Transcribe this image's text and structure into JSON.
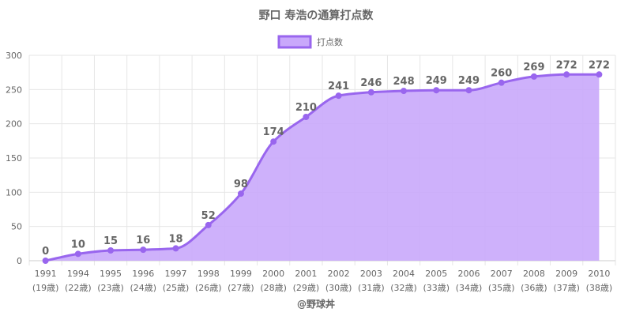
{
  "chart_data": {
    "type": "area",
    "title": "野口 寿浩の通算打点数",
    "legend": [
      {
        "label": "打点数"
      }
    ],
    "legend_position": "top-center",
    "x": [
      "1991",
      "1994",
      "1995",
      "1996",
      "1997",
      "1998",
      "1999",
      "2000",
      "2001",
      "2002",
      "2003",
      "2004",
      "2005",
      "2006",
      "2007",
      "2008",
      "2009",
      "2010"
    ],
    "x_sublabels": [
      "(19歳)",
      "(22歳)",
      "(23歳)",
      "(24歳)",
      "(25歳)",
      "(26歳)",
      "(27歳)",
      "(28歳)",
      "(29歳)",
      "(30歳)",
      "(31歳)",
      "(32歳)",
      "(33歳)",
      "(34歳)",
      "(35歳)",
      "(36歳)",
      "(37歳)",
      "(38歳)"
    ],
    "series": [
      {
        "name": "打点数",
        "values": [
          0,
          10,
          15,
          16,
          18,
          52,
          98,
          174,
          210,
          241,
          246,
          248,
          249,
          249,
          260,
          269,
          272,
          272
        ]
      }
    ],
    "yticks": [
      0,
      50,
      100,
      150,
      200,
      250,
      300
    ],
    "ylim": [
      0,
      300
    ],
    "grid": true,
    "colors": {
      "line": "#9966ee",
      "fill": "#c9a8fb",
      "point": "#9966ee",
      "grid": "#e6e6e6",
      "text": "#666666"
    }
  },
  "footer": {
    "credit": "@野球丼"
  }
}
